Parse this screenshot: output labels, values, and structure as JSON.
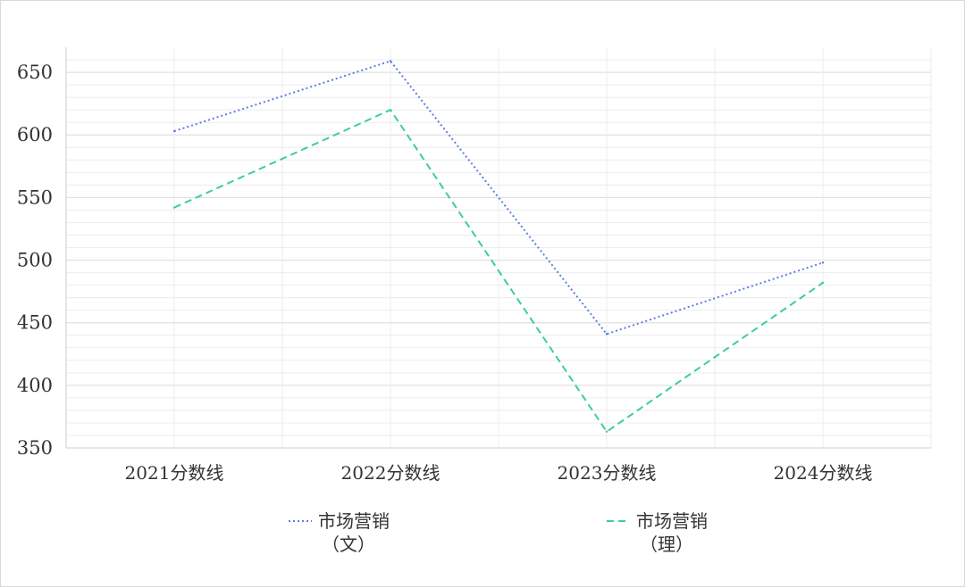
{
  "chart_data": {
    "type": "line",
    "categories": [
      "2021分数线",
      "2022分数线",
      "2023分数线",
      "2024分数线"
    ],
    "series": [
      {
        "name_line1": "市场营销",
        "name_line2": "（文）",
        "values": [
          603,
          659,
          441,
          498
        ],
        "color": "#5b7fde",
        "dash": "dotted"
      },
      {
        "name_line1": "市场营销",
        "name_line2": "（理）",
        "values": [
          542,
          620,
          363,
          482
        ],
        "color": "#3ccf93",
        "dash": "dashed"
      }
    ],
    "y_ticks": [
      "350",
      "400",
      "450",
      "500",
      "550",
      "600",
      "650"
    ],
    "ylim": [
      350,
      670
    ],
    "grid": true,
    "legend": "bottom"
  }
}
